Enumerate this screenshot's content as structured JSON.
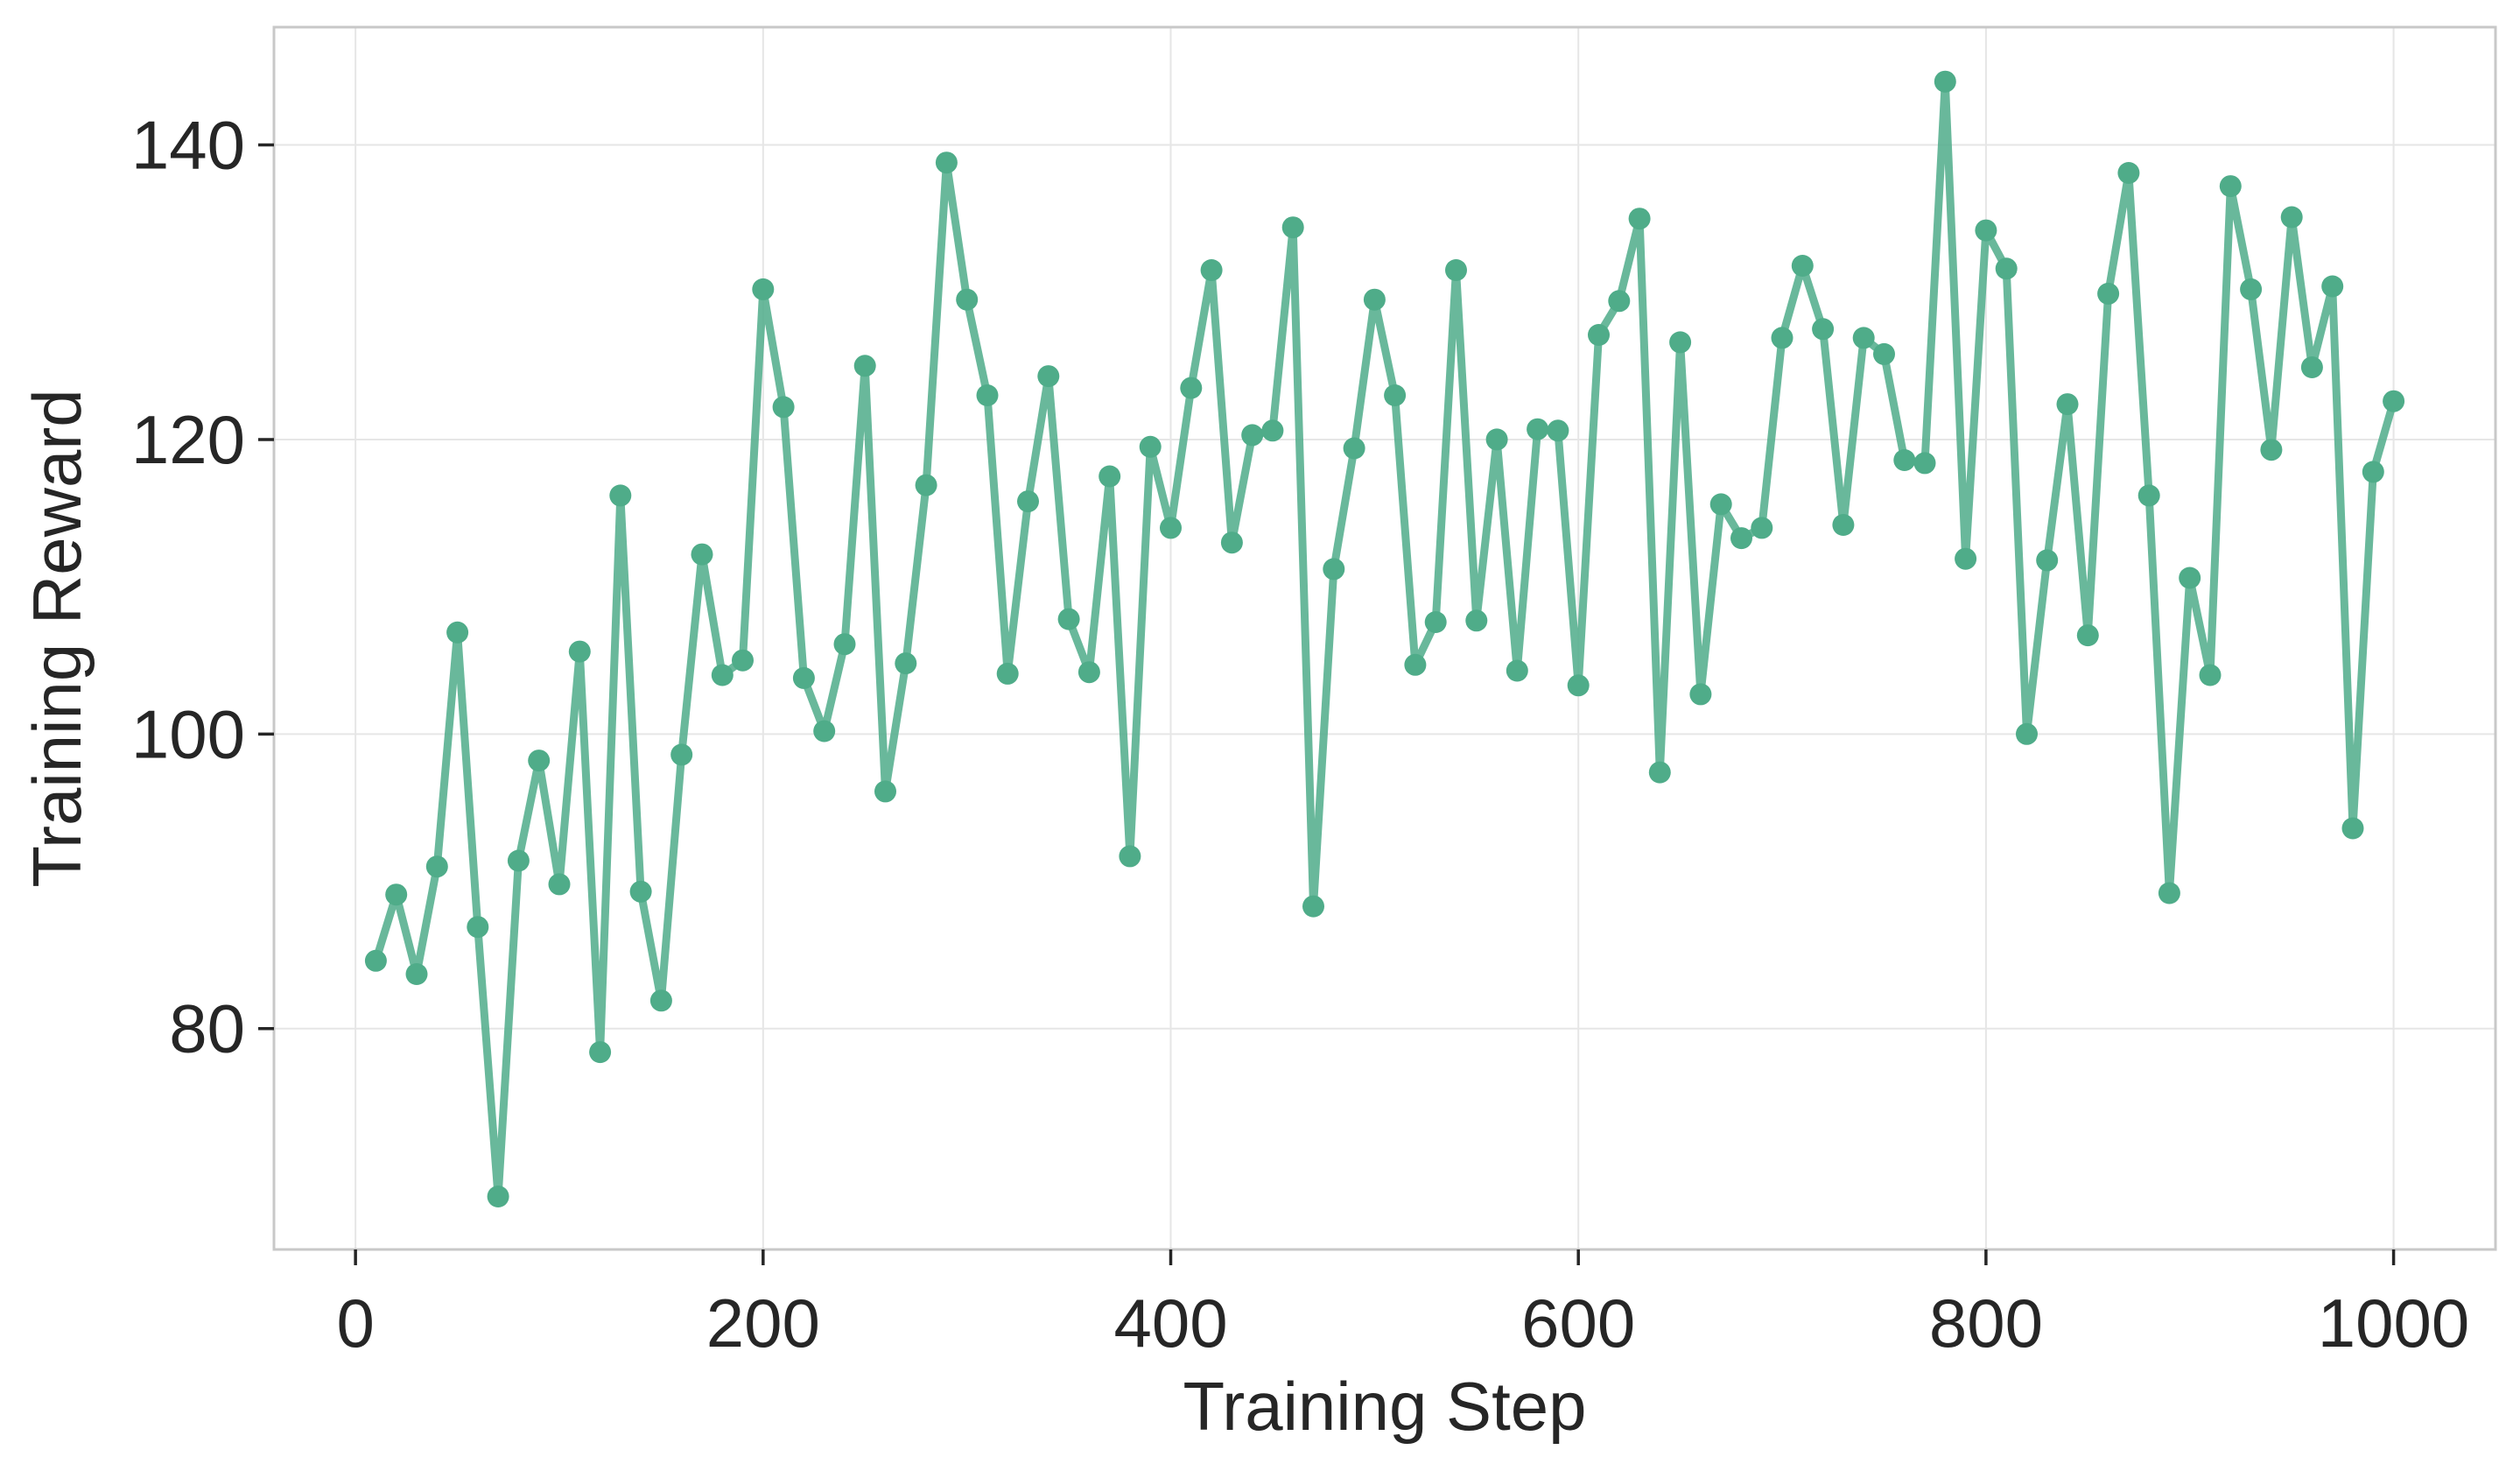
{
  "chart_data": {
    "type": "line",
    "title": "",
    "xlabel": "Training Step",
    "ylabel": "Training Reward",
    "xlim": [
      -40,
      1050
    ],
    "ylim": [
      65,
      148
    ],
    "xticks": [
      0,
      200,
      400,
      600,
      800,
      1000
    ],
    "yticks": [
      80,
      100,
      120,
      140
    ],
    "grid": true,
    "legend": "none",
    "colors": {
      "series": "#4fac89",
      "grid": "#e6e6e6",
      "frame": "#c8c8c8",
      "text": "#262626"
    },
    "series": [
      {
        "x": [
          10,
          20,
          30,
          40,
          50,
          60,
          70,
          80,
          90,
          100,
          110,
          120,
          130,
          140,
          150,
          160,
          170,
          180,
          190,
          200,
          210,
          220,
          230,
          240,
          250,
          260,
          270,
          280,
          290,
          300,
          310,
          320,
          330,
          340,
          350,
          360,
          370,
          380,
          390,
          400,
          410,
          420,
          430,
          440,
          450,
          460,
          470,
          480,
          490,
          500,
          510,
          520,
          530,
          540,
          550,
          560,
          570,
          580,
          590,
          600,
          610,
          620,
          630,
          640,
          650,
          660,
          670,
          680,
          690,
          700,
          710,
          720,
          730,
          740,
          750,
          760,
          770,
          780,
          790,
          800,
          810,
          820,
          830,
          840,
          850,
          860,
          870,
          880,
          890,
          900,
          910,
          920,
          930,
          940,
          950,
          960,
          970,
          980,
          990,
          1000
        ],
        "y": [
          84.6,
          89.1,
          83.7,
          91.0,
          106.9,
          86.9,
          68.6,
          91.4,
          98.2,
          89.8,
          105.6,
          78.4,
          116.2,
          89.3,
          81.9,
          98.6,
          112.2,
          104.0,
          105.0,
          130.2,
          122.2,
          103.8,
          100.2,
          106.1,
          125.0,
          96.1,
          104.8,
          116.9,
          138.8,
          129.5,
          123.0,
          104.1,
          115.8,
          124.3,
          107.8,
          104.2,
          117.5,
          91.7,
          119.5,
          114.0,
          123.5,
          131.5,
          113.0,
          120.3,
          120.6,
          134.4,
          88.3,
          111.2,
          119.4,
          129.5,
          123.0,
          104.7,
          107.6,
          131.5,
          107.7,
          120.0,
          104.3,
          120.7,
          120.6,
          103.3,
          127.1,
          129.4,
          135.0,
          97.4,
          126.6,
          102.7,
          115.6,
          113.3,
          114.0,
          126.9,
          131.8,
          127.5,
          114.2,
          126.9,
          125.8,
          118.6,
          118.4,
          144.3,
          111.9,
          134.2,
          131.6,
          100.0,
          111.8,
          122.4,
          106.7,
          129.9,
          138.1,
          116.2,
          89.2,
          110.6,
          104.0,
          137.2,
          130.2,
          119.3,
          135.1,
          124.9,
          130.4,
          93.6,
          117.8,
          122.6
        ]
      }
    ]
  }
}
